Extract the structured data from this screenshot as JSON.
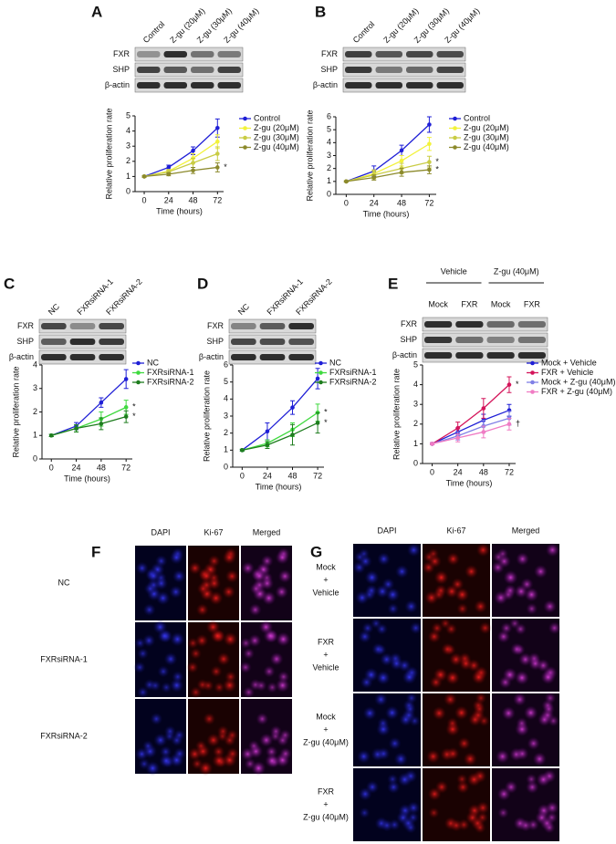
{
  "panel_labels": [
    "A",
    "B",
    "C",
    "D",
    "E",
    "F",
    "G"
  ],
  "blots": [
    {
      "columns": [
        "Control",
        "Z-gu (20μM)",
        "Z-gu (30μM)",
        "Z-gu (40μM)"
      ],
      "rows": [
        "FXR",
        "SHP",
        "β-actin"
      ]
    },
    {
      "columns": [
        "Control",
        "Z-gu (20μM)",
        "Z-gu (30μM)",
        "Z-gu (40μM)"
      ],
      "rows": [
        "FXR",
        "SHP",
        "β-actin"
      ]
    },
    {
      "columns": [
        "NC",
        "FXRsiRNA-1",
        "FXRsiRNA-2"
      ],
      "rows": [
        "FXR",
        "SHP",
        "β-actin"
      ]
    },
    {
      "columns": [
        "NC",
        "FXRsiRNA-1",
        "FXRsiRNA-2"
      ],
      "rows": [
        "FXR",
        "SHP",
        "β-actin"
      ]
    },
    {
      "groups": [
        "Vehicle",
        "Z-gu (40μM)"
      ],
      "columns": [
        "Mock",
        "FXR",
        "Mock",
        "FXR"
      ],
      "rows": [
        "FXR",
        "SHP",
        "β-actin"
      ]
    }
  ],
  "microscopy": [
    {
      "columns": [
        "DAPI",
        "Ki-67",
        "Merged"
      ],
      "rows": [
        [
          "NC"
        ],
        [
          "FXRsiRNA-1"
        ],
        [
          "FXRsiRNA-2"
        ]
      ]
    },
    {
      "columns": [
        "DAPI",
        "Ki-67",
        "Merged"
      ],
      "rows": [
        [
          "Mock",
          "+",
          "Vehicle"
        ],
        [
          "FXR",
          "+",
          "Vehicle"
        ],
        [
          "Mock",
          "+",
          "Z-gu (40μM)"
        ],
        [
          "FXR",
          "+",
          "Z-gu (40μM)"
        ]
      ]
    }
  ],
  "chart_data": [
    {
      "type": "line",
      "x_label": "Time (hours)",
      "y_label": "Relative proliferation rate",
      "x": [
        0,
        24,
        48,
        72
      ],
      "xlim": [
        -9,
        78
      ],
      "xticks": [
        0,
        24,
        48,
        72
      ],
      "ylim": [
        0,
        5
      ],
      "yticks": [
        0,
        1,
        2,
        3,
        4,
        5
      ],
      "series": [
        {
          "name": "Control",
          "color": "#1f1fd6",
          "values": [
            1,
            1.6,
            2.7,
            4.2
          ],
          "errors": [
            0.05,
            0.15,
            0.25,
            0.6
          ]
        },
        {
          "name": "Z-gu (20μM)",
          "color": "#f2f23a",
          "values": [
            1,
            1.35,
            2.2,
            3.3
          ],
          "errors": [
            0.05,
            0.1,
            0.3,
            0.45
          ]
        },
        {
          "name": "Z-gu (30μM)",
          "color": "#c9cc45",
          "values": [
            1,
            1.3,
            1.9,
            2.5
          ],
          "errors": [
            0.05,
            0.1,
            0.3,
            0.45
          ]
        },
        {
          "name": "Z-gu (40μM)",
          "color": "#8c8a2c",
          "values": [
            1,
            1.15,
            1.4,
            1.6
          ],
          "errors": [
            0.05,
            0.1,
            0.2,
            0.3
          ]
        }
      ],
      "annotations": [
        {
          "text": "*",
          "series": 3
        }
      ]
    },
    {
      "type": "line",
      "x_label": "Time (hours)",
      "y_label": "Relative proliferation rate",
      "x": [
        0,
        24,
        48,
        72
      ],
      "xlim": [
        -9,
        78
      ],
      "xticks": [
        0,
        24,
        48,
        72
      ],
      "ylim": [
        0,
        6
      ],
      "yticks": [
        0,
        1,
        2,
        3,
        4,
        5,
        6
      ],
      "series": [
        {
          "name": "Control",
          "color": "#1f1fd6",
          "values": [
            1,
            1.8,
            3.4,
            5.4
          ],
          "errors": [
            0.05,
            0.4,
            0.4,
            0.6
          ]
        },
        {
          "name": "Z-gu (20μM)",
          "color": "#f2f23a",
          "values": [
            1,
            1.6,
            2.6,
            3.9
          ],
          "errors": [
            0.05,
            0.3,
            0.4,
            0.5
          ]
        },
        {
          "name": "Z-gu (30μM)",
          "color": "#c9cc45",
          "values": [
            1,
            1.5,
            2.0,
            2.5
          ],
          "errors": [
            0.05,
            0.3,
            0.4,
            0.45
          ]
        },
        {
          "name": "Z-gu (40μM)",
          "color": "#8c8a2c",
          "values": [
            1,
            1.3,
            1.7,
            1.9
          ],
          "errors": [
            0.05,
            0.2,
            0.3,
            0.3
          ]
        }
      ],
      "annotations": [
        {
          "text": "*",
          "series": 2
        },
        {
          "text": "*",
          "series": 3
        }
      ]
    },
    {
      "type": "line",
      "x_label": "Time (hours)",
      "y_label": "Relative proliferation rate",
      "x": [
        0,
        24,
        48,
        72
      ],
      "xlim": [
        -9,
        78
      ],
      "xticks": [
        0,
        24,
        48,
        72
      ],
      "ylim": [
        0,
        4
      ],
      "yticks": [
        0,
        1,
        2,
        3,
        4
      ],
      "series": [
        {
          "name": "NC",
          "color": "#1f1fd6",
          "values": [
            1,
            1.4,
            2.4,
            3.4
          ],
          "errors": [
            0.05,
            0.15,
            0.2,
            0.4
          ]
        },
        {
          "name": "FXRsiRNA-1",
          "color": "#3fd93f",
          "values": [
            1,
            1.3,
            1.7,
            2.2
          ],
          "errors": [
            0.05,
            0.15,
            0.3,
            0.3
          ]
        },
        {
          "name": "FXRsiRNA-2",
          "color": "#1e7d1e",
          "values": [
            1,
            1.3,
            1.5,
            1.8
          ],
          "errors": [
            0.05,
            0.15,
            0.25,
            0.25
          ]
        }
      ],
      "annotations": [
        {
          "text": "*",
          "series": 1
        },
        {
          "text": "*",
          "series": 2
        }
      ]
    },
    {
      "type": "line",
      "x_label": "Time (hours)",
      "y_label": "Relative proliferation rate",
      "x": [
        0,
        24,
        48,
        72
      ],
      "xlim": [
        -9,
        78
      ],
      "xticks": [
        0,
        24,
        48,
        72
      ],
      "ylim": [
        0,
        6
      ],
      "yticks": [
        0,
        1,
        2,
        3,
        4,
        5,
        6
      ],
      "series": [
        {
          "name": "NC",
          "color": "#1f1fd6",
          "values": [
            1,
            2.1,
            3.5,
            5.2
          ],
          "errors": [
            0.05,
            0.5,
            0.4,
            0.6
          ]
        },
        {
          "name": "FXRsiRNA-1",
          "color": "#3fd93f",
          "values": [
            1,
            1.4,
            2.2,
            3.2
          ],
          "errors": [
            0.05,
            0.2,
            0.4,
            0.5
          ]
        },
        {
          "name": "FXRsiRNA-2",
          "color": "#1e7d1e",
          "values": [
            1,
            1.3,
            1.9,
            2.6
          ],
          "errors": [
            0.05,
            0.2,
            0.6,
            0.6
          ]
        }
      ],
      "annotations": [
        {
          "text": "*",
          "series": 1
        },
        {
          "text": "*",
          "series": 2
        }
      ]
    },
    {
      "type": "line",
      "x_label": "Time (hours)",
      "y_label": "Relative proliferation rate",
      "x": [
        0,
        24,
        48,
        72
      ],
      "xlim": [
        -9,
        78
      ],
      "xticks": [
        0,
        24,
        48,
        72
      ],
      "ylim": [
        0,
        5
      ],
      "yticks": [
        0,
        1,
        2,
        3,
        4,
        5
      ],
      "series": [
        {
          "name": "Mock + Vehicle",
          "color": "#1f1fd6",
          "values": [
            1,
            1.6,
            2.2,
            2.7
          ],
          "errors": [
            0.05,
            0.2,
            0.3,
            0.3
          ]
        },
        {
          "name": "FXR + Vehicle",
          "color": "#d4145a",
          "values": [
            1,
            1.8,
            2.8,
            4.0
          ],
          "errors": [
            0.05,
            0.3,
            0.5,
            0.4
          ]
        },
        {
          "name": "Mock + Z-gu (40μM)",
          "color": "#8080e6",
          "values": [
            1,
            1.4,
            1.9,
            2.3
          ],
          "errors": [
            0.05,
            0.2,
            0.3,
            0.35
          ]
        },
        {
          "name": "FXR + Z-gu (40μM)",
          "color": "#f07cc4",
          "values": [
            1,
            1.3,
            1.6,
            2.0
          ],
          "errors": [
            0.05,
            0.2,
            0.3,
            0.3
          ]
        }
      ],
      "annotations": [
        {
          "text": "*",
          "series": 1
        },
        {
          "text": "†",
          "series": 3
        }
      ]
    }
  ]
}
